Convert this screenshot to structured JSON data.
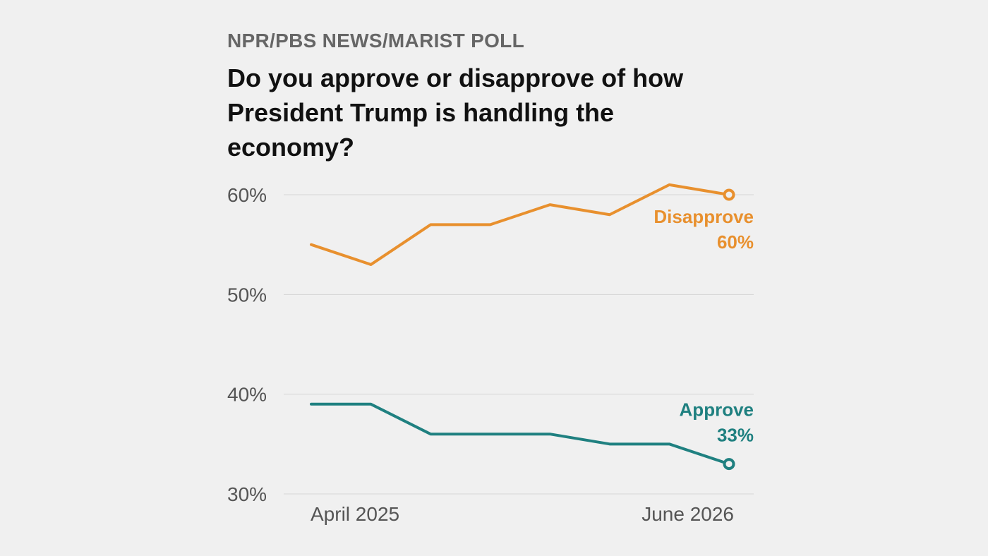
{
  "header": {
    "kicker": "NPR/PBS NEWS/MARIST POLL",
    "title": "Do you approve or disapprove of how President Trump is handling the economy?"
  },
  "colors": {
    "disapprove": "#e8902e",
    "approve": "#1f8080",
    "grid": "#d6d6d6",
    "background": "#f0f0f0"
  },
  "chart_data": {
    "type": "line",
    "title": "Do you approve or disapprove of how President Trump is handling the economy?",
    "xlabel": "",
    "ylabel": "",
    "ylim": [
      30,
      60
    ],
    "yticks": [
      60,
      50,
      40,
      30
    ],
    "ytick_labels": [
      "60%",
      "50%",
      "40%",
      "30%"
    ],
    "x_labels": [
      {
        "index": 0,
        "label": "April 2025"
      },
      {
        "index": 7,
        "label": "June 2026"
      }
    ],
    "grid": true,
    "legend": "direct labels at line ends",
    "series": [
      {
        "name": "Disapprove",
        "color": "#e8902e",
        "values": [
          55,
          53,
          57,
          57,
          59,
          58,
          61,
          60
        ],
        "end_label": "Disapprove",
        "end_value_label": "60%"
      },
      {
        "name": "Approve",
        "color": "#1f8080",
        "values": [
          39,
          39,
          36,
          36,
          36,
          35,
          35,
          33
        ],
        "end_label": "Approve",
        "end_value_label": "33%"
      }
    ]
  }
}
